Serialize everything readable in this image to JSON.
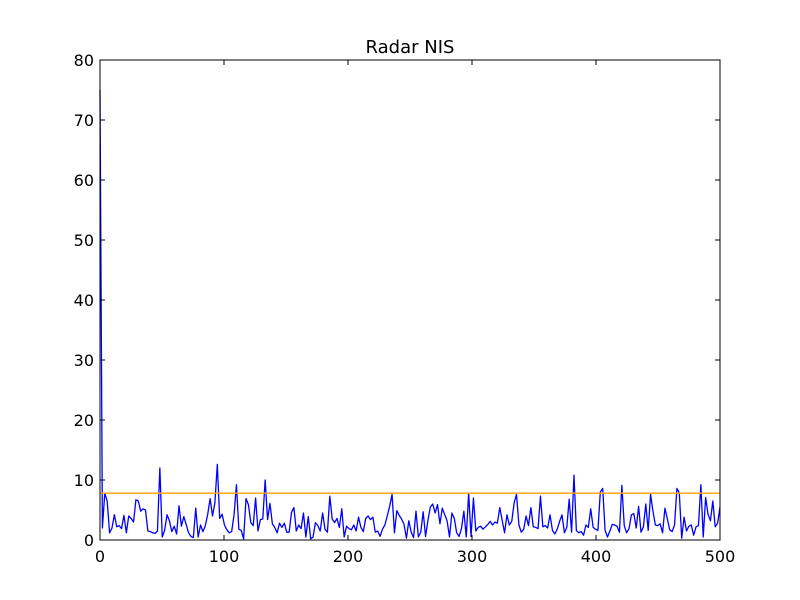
{
  "chart_data": {
    "type": "line",
    "title": "Radar NIS",
    "xlabel": "",
    "ylabel": "",
    "xlim": [
      0,
      500
    ],
    "ylim": [
      0,
      80
    ],
    "xticks": [
      0,
      100,
      200,
      300,
      400,
      500
    ],
    "yticks": [
      0,
      10,
      20,
      30,
      40,
      50,
      60,
      70,
      80
    ],
    "grid": false,
    "legend": "none",
    "series": [
      {
        "color": "#0000ff",
        "values": [
          75,
          2,
          7.8,
          6.5,
          1.2,
          2.0,
          4.2,
          2.2,
          2.4,
          1.9,
          4.1,
          1.2,
          4.0,
          3.6,
          3.0,
          6.7,
          6.5,
          4.8,
          5.2,
          5.0,
          1.5,
          1.4,
          1.2,
          1.1,
          1.5,
          12.0,
          0.5,
          1.6,
          4.2,
          3.2,
          1.4,
          2.3,
          1.0,
          5.7,
          2.3,
          3.9,
          2.6,
          1.2,
          0.6,
          0.4,
          5.3,
          0.5,
          2.5,
          1.4,
          2.4,
          4.3,
          6.9,
          4.0,
          6.2,
          12.6,
          3.6,
          4.3,
          2.5,
          1.7,
          1.2,
          1.4,
          4.2,
          9.2,
          1.8,
          1.6,
          0.2,
          6.9,
          5.9,
          2.9,
          2.4,
          7.0,
          1.5,
          3.4,
          3.5,
          10.0,
          3.4,
          6.1,
          2.7,
          2.1,
          1.2,
          2.8,
          2.1,
          2.8,
          1.3,
          1.3,
          4.6,
          5.4,
          1.5,
          2.5,
          1.9,
          4.5,
          0.5,
          3.9,
          0.2,
          0.5,
          2.9,
          2.4,
          1.5,
          4.5,
          1.8,
          1.3,
          7.3,
          3.5,
          2.9,
          3.6,
          2.1,
          5.2,
          0.5,
          2.3,
          1.9,
          1.7,
          2.5,
          1.5,
          3.8,
          2.1,
          1.4,
          3.6,
          4.0,
          3.4,
          3.8,
          1.3,
          1.5,
          0.6,
          1.8,
          2.5,
          4.0,
          5.6,
          7.6,
          1.2,
          4.9,
          4.1,
          3.5,
          2.6,
          0.3,
          3.2,
          1.3,
          0.4,
          4.8,
          0.5,
          1.3,
          4.7,
          0.6,
          3.3,
          5.5,
          6.0,
          4.5,
          5.9,
          2.7,
          5.3,
          4.2,
          3.2,
          0.5,
          4.5,
          3.6,
          1.2,
          0.6,
          1.9,
          4.8,
          0.5,
          7.8,
          0.6,
          7.0,
          1.5,
          2.1,
          2.3,
          1.8,
          2.2,
          2.6,
          3.1,
          2.5,
          3.0,
          2.8,
          5.4,
          3.3,
          1.2,
          4.2,
          2.5,
          3.1,
          6.2,
          7.6,
          2.5,
          1.3,
          1.8,
          4.0,
          2.4,
          5.4,
          2.2,
          2.1,
          1.9,
          7.3,
          2.2,
          2.4,
          2.0,
          4.2,
          1.6,
          1.0,
          1.8,
          3.1,
          4.2,
          1.2,
          2.1,
          6.8,
          1.3,
          10.8,
          1.6,
          1.2,
          1.4,
          0.8,
          2.5,
          2.1,
          5.2,
          2.1,
          1.8,
          1.6,
          8.0,
          8.6,
          1.6,
          0.5,
          1.5,
          2.6,
          2.5,
          2.3,
          1.3,
          9.1,
          2.4,
          1.2,
          1.9,
          4.2,
          4.4,
          2.0,
          5.6,
          1.3,
          2.2,
          6.0,
          1.6,
          7.6,
          4.8,
          2.5,
          2.4,
          2.7,
          1.2,
          5.3,
          3.5,
          1.7,
          1.4,
          2.5,
          8.6,
          7.8,
          0.3,
          3.8,
          1.5,
          2.3,
          2.5,
          0.8,
          2.2,
          2.4,
          9.2,
          0.5,
          7.1,
          4.3,
          3.2,
          6.5,
          2.2,
          2.8,
          5.5
        ]
      },
      {
        "color": "#ffa500",
        "values": [
          7.8,
          7.8
        ]
      }
    ]
  }
}
